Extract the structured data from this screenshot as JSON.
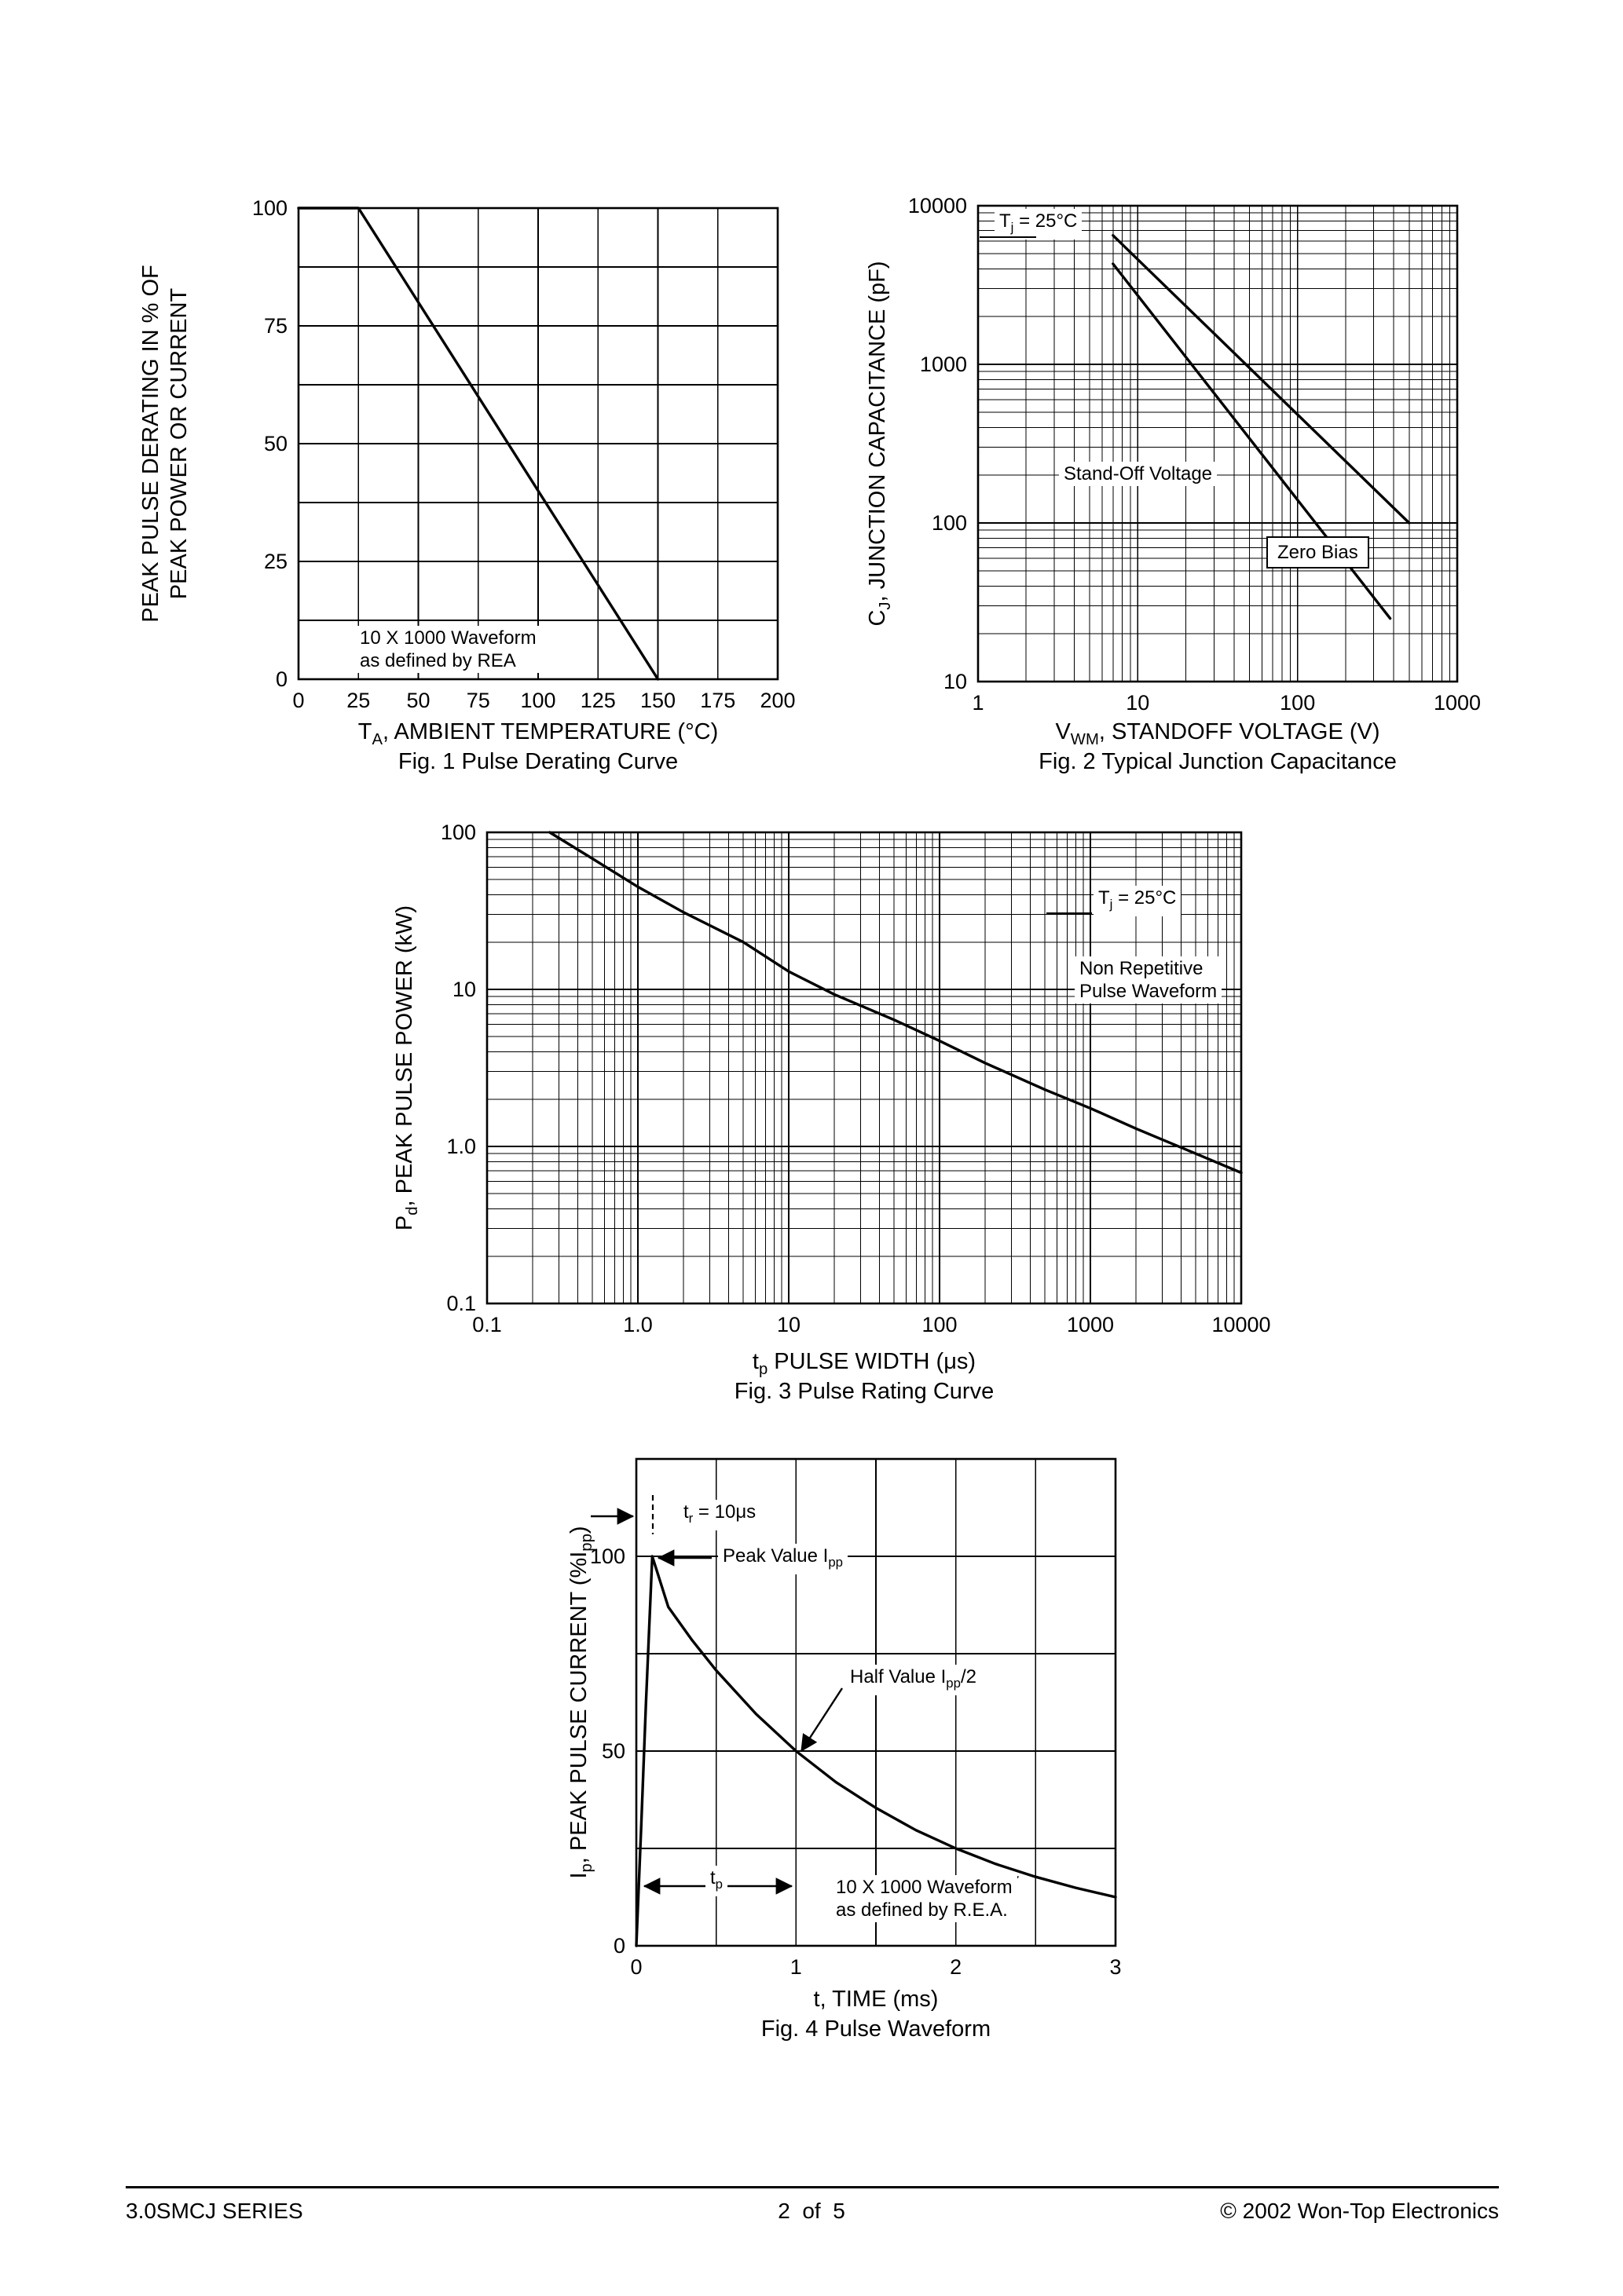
{
  "footer": {
    "left": "3.0SMCJ SERIES",
    "center": "2  of  5",
    "right": "© 2002 Won-Top Electronics"
  },
  "figures": {
    "fig1": {
      "caption": "Fig. 1  Pulse Derating Curve",
      "ylabel_lines": [
        "PEAK PULSE DERATING IN % OF",
        "PEAK POWER OR CURRENT"
      ],
      "xlabel_parts": [
        {
          "t": "T"
        },
        {
          "t": "A",
          "sub": true
        },
        {
          "t": ", AMBIENT TEMPERATURE (°C)"
        }
      ],
      "annotation_lines": [
        "10 X 1000 Waveform",
        "as defined by REA"
      ]
    },
    "fig2": {
      "caption": "Fig. 2  Typical Junction Capacitance",
      "ylabel_parts": [
        {
          "t": "C"
        },
        {
          "t": "J",
          "sub": true
        },
        {
          "t": ", JUNCTION CAPACITANCE (pF)"
        }
      ],
      "xlabel_parts": [
        {
          "t": "V"
        },
        {
          "t": "WM",
          "sub": true
        },
        {
          "t": ", STANDOFF VOLTAGE (V)"
        }
      ],
      "tj_parts": [
        {
          "t": "T"
        },
        {
          "t": "j",
          "sub": true
        },
        {
          "t": " = 25°C"
        }
      ],
      "zero_bias_label": "Zero Bias",
      "standoff_label": "Stand-Off Voltage"
    },
    "fig3": {
      "caption": "Fig. 3 Pulse Rating Curve",
      "ylabel_parts": [
        {
          "t": "P"
        },
        {
          "t": "d",
          "sub": true
        },
        {
          "t": ", PEAK PULSE POWER (kW)"
        }
      ],
      "xlabel_parts": [
        {
          "t": "t"
        },
        {
          "t": "p",
          "sub": true
        },
        {
          "t": " PULSE WIDTH (μs)"
        }
      ],
      "tj_parts": [
        {
          "t": "T"
        },
        {
          "t": "j",
          "sub": true
        },
        {
          "t": " = 25°C"
        }
      ],
      "nonrep_lines": [
        "Non Repetitive",
        "Pulse Waveform"
      ]
    },
    "fig4": {
      "caption": "Fig. 4  Pulse Waveform",
      "ylabel_parts": [
        {
          "t": "I"
        },
        {
          "t": "p",
          "sub": true
        },
        {
          "t": ", PEAK PULSE CURRENT (%I"
        },
        {
          "t": "pp",
          "sub": true
        },
        {
          "t": ")"
        }
      ],
      "xlabel_parts": [
        {
          "t": "t, TIME (ms)"
        }
      ],
      "tr_parts": [
        {
          "t": "t"
        },
        {
          "t": "r",
          "sub": true
        },
        {
          "t": " = 10μs"
        }
      ],
      "peak_parts": [
        {
          "t": "Peak Value I"
        },
        {
          "t": "pp",
          "sub": true
        }
      ],
      "half_parts": [
        {
          "t": "Half Value I"
        },
        {
          "t": "pp",
          "sub": true
        },
        {
          "t": "/2"
        }
      ],
      "tp_parts": [
        {
          "t": "t"
        },
        {
          "t": "p",
          "sub": true
        }
      ],
      "waveform_lines": [
        "10 X 1000 Waveform",
        "as defined by R.E.A."
      ]
    }
  },
  "chart_data": [
    {
      "id": "fig1",
      "type": "line",
      "title": "Fig. 1 Pulse Derating Curve",
      "xlabel": "TA, AMBIENT TEMPERATURE (°C)",
      "ylabel": "PEAK PULSE DERATING IN % OF PEAK POWER OR CURRENT",
      "xscale": "linear",
      "yscale": "linear",
      "xlim": [
        0,
        200
      ],
      "ylim": [
        0,
        100
      ],
      "xticks": [
        0,
        25,
        50,
        75,
        100,
        125,
        150,
        175,
        200
      ],
      "yticks": [
        0,
        25,
        50,
        75,
        100
      ],
      "x_grid_step": 25,
      "y_grid_step": 12.5,
      "grid": true,
      "annotation": "10 X 1000 Waveform as defined by REA",
      "series": [
        {
          "name": "Pulse Derating",
          "points": [
            [
              0,
              100
            ],
            [
              25,
              100
            ],
            [
              150,
              0
            ]
          ]
        }
      ]
    },
    {
      "id": "fig2",
      "type": "line",
      "title": "Fig. 2 Typical Junction Capacitance",
      "xlabel": "VWM, STANDOFF VOLTAGE (V)",
      "ylabel": "CJ, JUNCTION CAPACITANCE (pF)",
      "xscale": "log",
      "yscale": "log",
      "xlim": [
        1,
        1000
      ],
      "ylim": [
        10,
        10000
      ],
      "xticks": [
        1,
        10,
        100,
        1000
      ],
      "xtick_labels": [
        "1",
        "10",
        "100",
        "1000"
      ],
      "yticks": [
        10,
        100,
        1000,
        10000
      ],
      "ytick_labels": [
        "10",
        "100",
        "1000",
        "10000"
      ],
      "grid": true,
      "annotation": "Tj = 25°C",
      "series": [
        {
          "name": "Zero Bias",
          "points": [
            [
              7,
              6500
            ],
            [
              500,
              100
            ]
          ]
        },
        {
          "name": "Stand-Off Voltage",
          "points": [
            [
              7,
              4300
            ],
            [
              380,
              25
            ]
          ]
        }
      ]
    },
    {
      "id": "fig3",
      "type": "line",
      "title": "Fig. 3 Pulse Rating Curve",
      "xlabel": "tp PULSE WIDTH (μs)",
      "ylabel": "Pd, PEAK PULSE POWER (kW)",
      "xscale": "log",
      "yscale": "log",
      "xlim": [
        0.1,
        10000
      ],
      "ylim": [
        0.1,
        100
      ],
      "xticks": [
        0.1,
        1,
        10,
        100,
        1000,
        10000
      ],
      "xtick_labels": [
        "0.1",
        "1.0",
        "10",
        "100",
        "1000",
        "10000"
      ],
      "yticks": [
        0.1,
        1,
        10,
        100
      ],
      "ytick_labels": [
        "0.1",
        "1.0",
        "10",
        "100"
      ],
      "grid": true,
      "annotations": [
        "Tj = 25°C",
        "Non Repetitive Pulse Waveform"
      ],
      "series": [
        {
          "name": "Peak Pulse Power",
          "points": [
            [
              0.26,
              100
            ],
            [
              0.5,
              68
            ],
            [
              1,
              45
            ],
            [
              2,
              31
            ],
            [
              5,
              20
            ],
            [
              10,
              13
            ],
            [
              20,
              9.3
            ],
            [
              50,
              6.4
            ],
            [
              100,
              4.7
            ],
            [
              200,
              3.4
            ],
            [
              500,
              2.3
            ],
            [
              1000,
              1.75
            ],
            [
              2000,
              1.3
            ],
            [
              5000,
              0.9
            ],
            [
              10000,
              0.68
            ]
          ]
        }
      ]
    },
    {
      "id": "fig4",
      "type": "line",
      "title": "Fig. 4 Pulse Waveform",
      "xlabel": "t, TIME (ms)",
      "ylabel": "Ip, PEAK PULSE CURRENT (%Ipp)",
      "xscale": "linear",
      "yscale": "linear",
      "xlim": [
        0,
        3
      ],
      "ylim": [
        0,
        125
      ],
      "xticks": [
        0,
        1,
        2,
        3
      ],
      "yticks": [
        0,
        50,
        100
      ],
      "x_grid_step": 0.5,
      "y_grid_step": 25,
      "grid": true,
      "annotations": [
        "tr = 10μs",
        "Peak Value Ipp",
        "Half Value Ipp/2",
        "tp",
        "10 X 1000 Waveform as defined by R.E.A."
      ],
      "series": [
        {
          "name": "Pulse Waveform",
          "points": [
            [
              0,
              0
            ],
            [
              0.03,
              30
            ],
            [
              0.06,
              62
            ],
            [
              0.1,
              100
            ],
            [
              0.2,
              87
            ],
            [
              0.35,
              78.4
            ],
            [
              0.5,
              70.7
            ],
            [
              0.75,
              59.5
            ],
            [
              1,
              50
            ],
            [
              1.25,
              42
            ],
            [
              1.5,
              35.4
            ],
            [
              1.75,
              29.7
            ],
            [
              2,
              25
            ],
            [
              2.25,
              21
            ],
            [
              2.5,
              17.7
            ],
            [
              2.75,
              14.9
            ],
            [
              3,
              12.5
            ]
          ]
        }
      ]
    }
  ]
}
